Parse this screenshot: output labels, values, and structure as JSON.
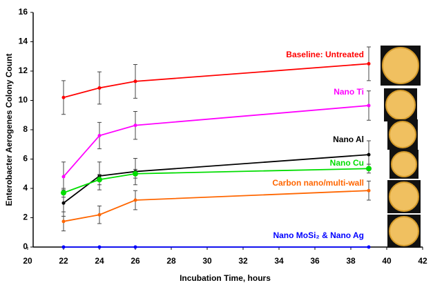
{
  "chart_data": {
    "type": "line",
    "x_label": "Incubation Time, hours",
    "y_label": "Enterobacter Aerogenes Colony Count",
    "x": [
      22,
      24,
      26,
      39
    ],
    "xlim": [
      20,
      42
    ],
    "xticks": [
      20,
      22,
      24,
      26,
      28,
      30,
      32,
      34,
      36,
      38,
      40,
      42
    ],
    "ylim": [
      0,
      16
    ],
    "yticks": [
      0,
      2,
      4,
      6,
      8,
      10,
      12,
      14,
      16
    ],
    "series": [
      {
        "name": "Baseline: Untreated",
        "color": "#ff0000",
        "values": [
          10.2,
          10.85,
          11.3,
          12.5
        ],
        "errors": [
          1.15,
          1.1,
          1.15,
          1.15
        ]
      },
      {
        "name": "Nano Ti",
        "color": "#ff00ff",
        "values": [
          4.8,
          7.6,
          8.3,
          9.65
        ],
        "errors": [
          1.0,
          0.9,
          0.95,
          1.0
        ]
      },
      {
        "name": "Nano Al",
        "color": "#000000",
        "values": [
          3.0,
          4.85,
          5.15,
          6.3
        ],
        "errors": [
          0.9,
          0.95,
          0.9,
          0.95
        ]
      },
      {
        "name": "Nano Cu",
        "color": "#00dd00",
        "values": [
          3.7,
          4.6,
          5.0,
          5.35
        ],
        "errors": [
          0.3,
          0.35,
          0.3,
          0.3
        ]
      },
      {
        "name": "Carbon nano/multi-wall",
        "color": "#ff6600",
        "values": [
          1.75,
          2.2,
          3.2,
          3.85
        ],
        "errors": [
          0.65,
          0.6,
          0.65,
          0.65
        ]
      },
      {
        "name": "Nano MoSi₂ & Nano Ag",
        "color": "#0000ff",
        "values": [
          0,
          0,
          0,
          0
        ],
        "errors": [
          0,
          0,
          0,
          0
        ]
      }
    ]
  }
}
